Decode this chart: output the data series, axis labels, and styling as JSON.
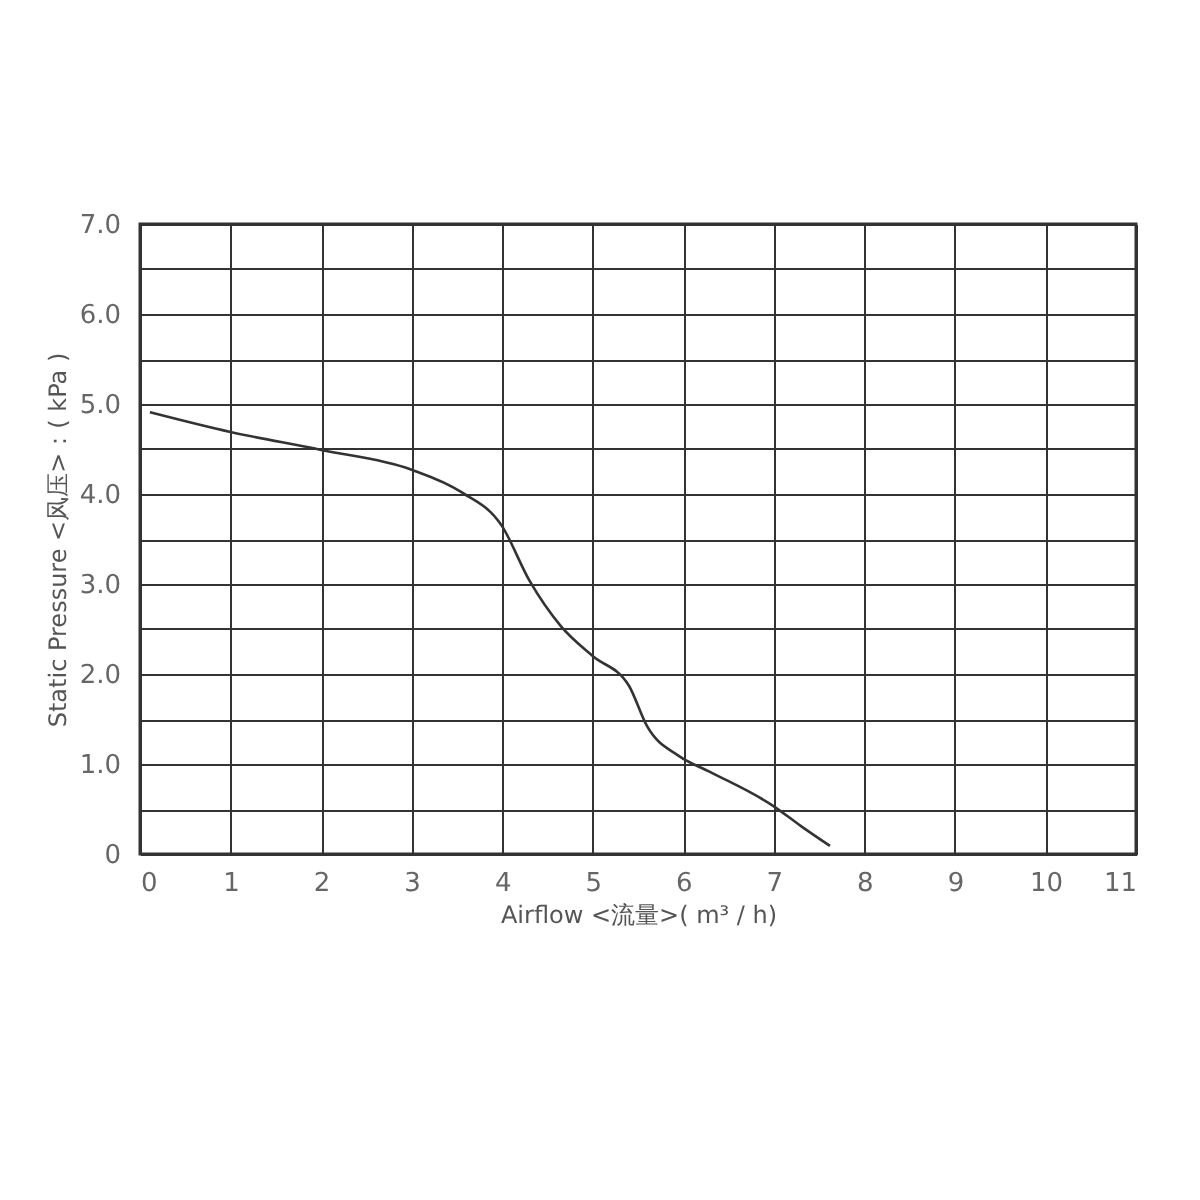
{
  "chart_data": {
    "type": "line",
    "xlabel": "Airflow  <流量>( m³ / h)",
    "ylabel": "Static  Pressure  <风压>：( kPa )",
    "x": [
      0.11,
      1,
      2,
      3,
      3.55,
      4,
      4.3,
      4.65,
      5,
      5.4,
      5.6,
      5.95,
      6.3,
      7,
      7.3,
      7.62
    ],
    "series": [
      {
        "color": "#333333",
        "values": [
          4.91,
          4.69,
          4.49,
          4.27,
          4.02,
          3.64,
          3.04,
          2.53,
          2.2,
          1.87,
          1.42,
          1.09,
          0.91,
          0.53,
          0.31,
          0.09
        ]
      }
    ],
    "xlim": [
      0,
      11
    ],
    "xticks": [
      0,
      1,
      2,
      3,
      4,
      5,
      6,
      7,
      8,
      9,
      10,
      11
    ],
    "ylim": [
      0,
      7
    ],
    "yticks": [
      0,
      {
        "value": 0.5,
        "label": null
      },
      {
        "value": 1,
        "label": "1.0"
      },
      {
        "value": 1.5,
        "label": null
      },
      {
        "value": 2,
        "label": "2.0"
      },
      {
        "value": 2.5,
        "label": null
      },
      {
        "value": 3,
        "label": "3.0"
      },
      {
        "value": 3.5,
        "label": null
      },
      {
        "value": 4,
        "label": "4.0"
      },
      {
        "value": 4.5,
        "label": null
      },
      {
        "value": 5,
        "label": "5.0"
      },
      {
        "value": 5.5,
        "label": null
      },
      {
        "value": 6,
        "label": "6.0"
      },
      {
        "value": 6.5,
        "label": null
      },
      {
        "value": 7,
        "label": "7.0"
      }
    ],
    "grid": true,
    "marker": "none",
    "line_style": "solid"
  }
}
